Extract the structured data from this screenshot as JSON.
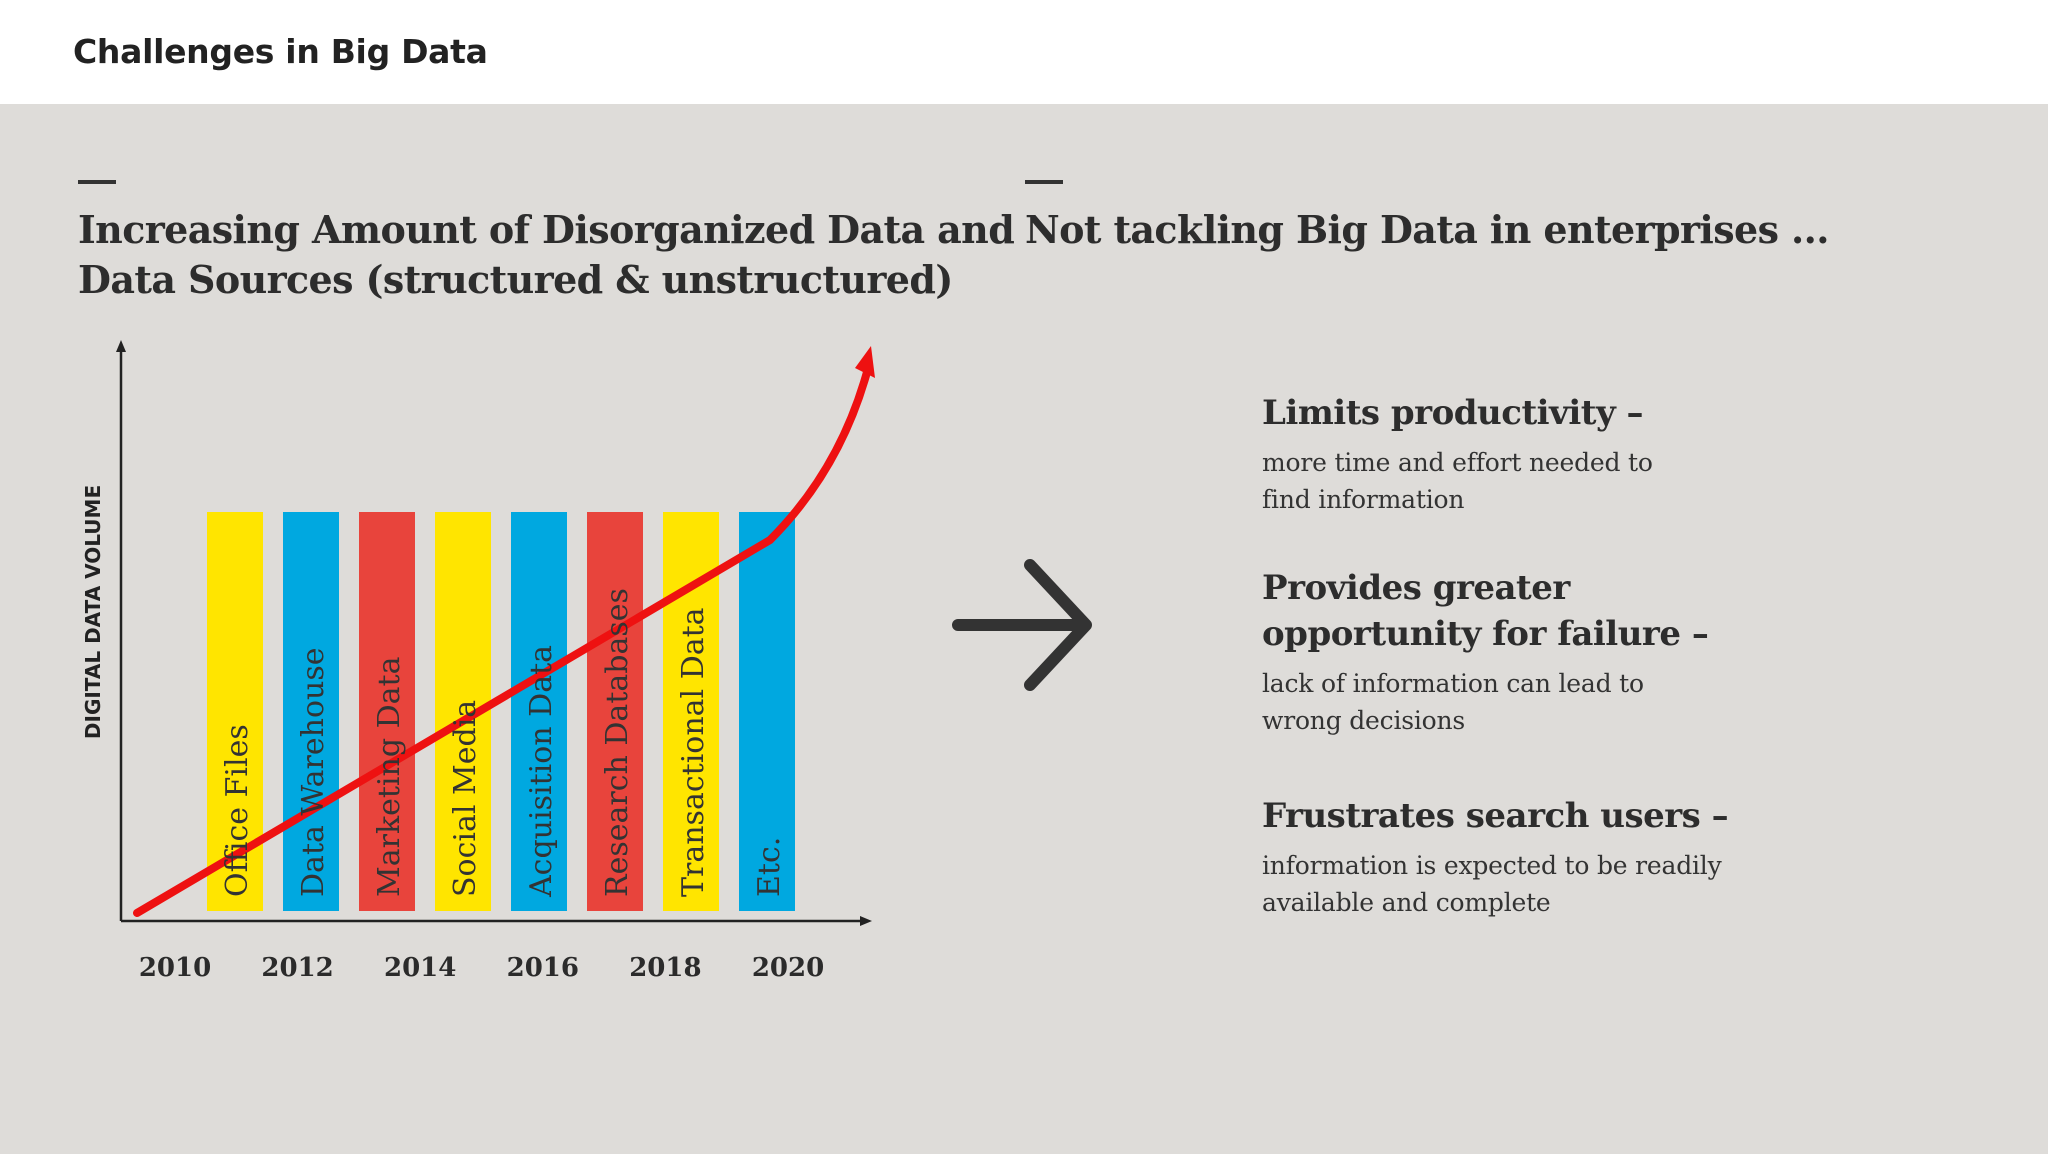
{
  "header": {
    "title": "Challenges in Big Data"
  },
  "left": {
    "heading_line1": "Increasing Amount of Disorganized Data and",
    "heading_line2": "Data Sources (structured & unstructured)"
  },
  "right": {
    "heading": "Not tackling Big Data in enterprises ...",
    "points": [
      {
        "title": "Limits productivity –",
        "desc_line1": "more time and effort needed to",
        "desc_line2": "find information"
      },
      {
        "title_line1": "Provides greater",
        "title_line2": "opportunity for failure –",
        "desc_line1": "lack of information can lead to",
        "desc_line2": "wrong decisions"
      },
      {
        "title": "Frustrates search users –",
        "desc_line1": "information is expected to be readily",
        "desc_line2": "available and complete"
      }
    ]
  },
  "chart_data": {
    "type": "bar",
    "ylabel": "DIGITAL DATA VOLUME",
    "x_tick_labels": [
      "2010",
      "2012",
      "2014",
      "2016",
      "2018",
      "2020"
    ],
    "categories": [
      "Office Files",
      "Data Warehouse",
      "Marketing Data",
      "Social Media",
      "Acquisition Data",
      "Research Databases",
      "Transactional Data",
      "Etc."
    ],
    "bar_colors": [
      "#ffe500",
      "#00a8e0",
      "#e8443c",
      "#ffe500",
      "#00a8e0",
      "#e8443c",
      "#ffe500",
      "#00a8e0"
    ],
    "trend_color": "#ee1111",
    "axis_color": "#222222"
  },
  "icons": {
    "arrow": "arrow-right-icon"
  }
}
